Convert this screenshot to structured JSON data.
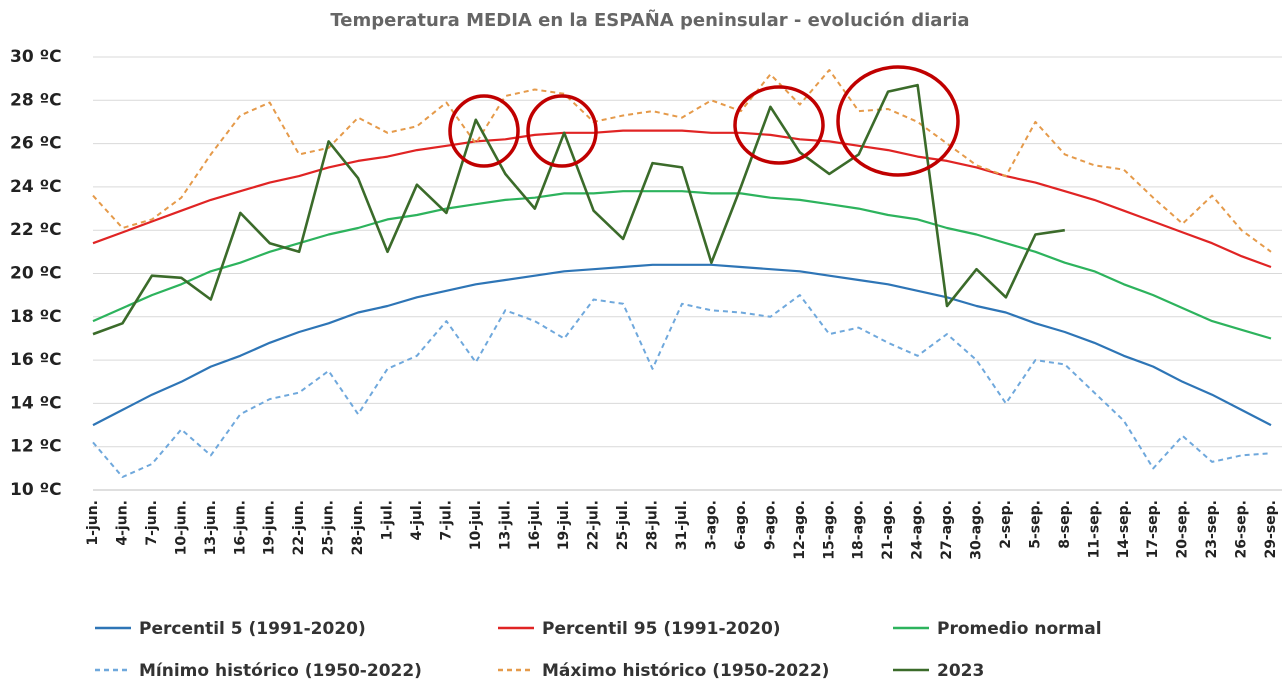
{
  "chart_data": {
    "type": "line",
    "title": "Temperatura MEDIA en la ESPAÑA peninsular - evolución diaria",
    "categories": [
      "1-jun.",
      "4-jun.",
      "7-jun.",
      "10-jun.",
      "13-jun.",
      "16-jun.",
      "19-jun.",
      "22-jun.",
      "25-jun.",
      "28-jun.",
      "1-jul.",
      "4-jul.",
      "7-jul.",
      "10-jul.",
      "13-jul.",
      "16-jul.",
      "19-jul.",
      "22-jul.",
      "25-jul.",
      "28-jul.",
      "31-jul.",
      "3-ago.",
      "6-ago.",
      "9-ago.",
      "12-ago.",
      "15-ago.",
      "18-ago.",
      "21-ago.",
      "24-ago.",
      "27-ago.",
      "30-ago.",
      "2-sep.",
      "5-sep.",
      "8-sep.",
      "11-sep.",
      "14-sep.",
      "17-sep.",
      "20-sep.",
      "23-sep.",
      "26-sep.",
      "29-sep."
    ],
    "ylim": [
      10,
      30
    ],
    "yticks": [
      {
        "value": 10,
        "label": "10 ºC"
      },
      {
        "value": 12,
        "label": "12 ºC"
      },
      {
        "value": 14,
        "label": "14 ºC"
      },
      {
        "value": 16,
        "label": "16 ºC"
      },
      {
        "value": 18,
        "label": "18 ºC"
      },
      {
        "value": 20,
        "label": "20 ºC"
      },
      {
        "value": 22,
        "label": "22 ºC"
      },
      {
        "value": 24,
        "label": "24 ºC"
      },
      {
        "value": 26,
        "label": "26 ºC"
      },
      {
        "value": 28,
        "label": "28 ºC"
      },
      {
        "value": 30,
        "label": "30 ºC"
      }
    ],
    "grid": true,
    "series": [
      {
        "name": "Percentil 5 (1991-2020)",
        "color": "#2e75b6",
        "dashed": false,
        "values": [
          13.0,
          13.7,
          14.4,
          15.0,
          15.7,
          16.2,
          16.8,
          17.3,
          17.7,
          18.2,
          18.5,
          18.9,
          19.2,
          19.5,
          19.7,
          19.9,
          20.1,
          20.2,
          20.3,
          20.4,
          20.4,
          20.4,
          20.3,
          20.2,
          20.1,
          19.9,
          19.7,
          19.5,
          19.2,
          18.9,
          18.5,
          18.2,
          17.7,
          17.3,
          16.8,
          16.2,
          15.7,
          15.0,
          14.4,
          13.7,
          13.0
        ]
      },
      {
        "name": "Percentil 95 (1991-2020)",
        "color": "#e02424",
        "dashed": false,
        "values": [
          21.4,
          21.9,
          22.4,
          22.9,
          23.4,
          23.8,
          24.2,
          24.5,
          24.9,
          25.2,
          25.4,
          25.7,
          25.9,
          26.1,
          26.2,
          26.4,
          26.5,
          26.5,
          26.6,
          26.6,
          26.6,
          26.5,
          26.5,
          26.4,
          26.2,
          26.1,
          25.9,
          25.7,
          25.4,
          25.2,
          24.9,
          24.5,
          24.2,
          23.8,
          23.4,
          22.9,
          22.4,
          21.9,
          21.4,
          20.8,
          20.3
        ]
      },
      {
        "name": "Promedio normal",
        "color": "#2db35d",
        "dashed": false,
        "values": [
          17.8,
          18.4,
          19.0,
          19.5,
          20.1,
          20.5,
          21.0,
          21.4,
          21.8,
          22.1,
          22.5,
          22.7,
          23.0,
          23.2,
          23.4,
          23.5,
          23.7,
          23.7,
          23.8,
          23.8,
          23.8,
          23.7,
          23.7,
          23.5,
          23.4,
          23.2,
          23.0,
          22.7,
          22.5,
          22.1,
          21.8,
          21.4,
          21.0,
          20.5,
          20.1,
          19.5,
          19.0,
          18.4,
          17.8,
          17.4,
          17.0
        ]
      },
      {
        "name": "Mínimo histórico (1950-2022)",
        "color": "#6fa8dc",
        "dashed": true,
        "values": [
          12.2,
          10.6,
          11.2,
          12.8,
          11.6,
          13.5,
          14.2,
          14.5,
          15.5,
          13.5,
          15.6,
          16.2,
          17.8,
          15.9,
          18.3,
          17.8,
          17.0,
          18.8,
          18.6,
          15.6,
          18.6,
          18.3,
          18.2,
          18.0,
          19.0,
          17.2,
          17.5,
          16.8,
          16.2,
          17.2,
          16.0,
          14.0,
          16.0,
          15.8,
          14.5,
          13.2,
          11.0,
          12.5,
          11.3,
          11.6,
          11.7
        ]
      },
      {
        "name": "Máximo histórico (1950-2022)",
        "color": "#e59a4a",
        "dashed": true,
        "values": [
          23.6,
          22.1,
          22.5,
          23.5,
          25.5,
          27.3,
          27.9,
          25.5,
          25.8,
          27.2,
          26.5,
          26.8,
          27.9,
          26.0,
          28.2,
          28.5,
          28.3,
          27.0,
          27.3,
          27.5,
          27.2,
          28.0,
          27.5,
          29.2,
          27.8,
          29.4,
          27.5,
          27.6,
          27.0,
          26.0,
          25.0,
          24.5,
          27.0,
          25.5,
          25.0,
          24.8,
          23.5,
          22.3,
          23.6,
          22.0,
          21.0
        ]
      },
      {
        "name": "2023",
        "color": "#3b6b2a",
        "dashed": false,
        "values": [
          17.2,
          17.7,
          19.9,
          19.8,
          18.8,
          22.8,
          21.4,
          21.0,
          26.1,
          24.4,
          21.0,
          24.1,
          22.8,
          27.1,
          24.6,
          23.0,
          26.5,
          22.9,
          21.6,
          25.1,
          24.9,
          20.5,
          24.0,
          27.7,
          25.6,
          24.6,
          25.5,
          28.4,
          28.7,
          18.5,
          20.2,
          18.9,
          21.8,
          22.0,
          null,
          null,
          null,
          null,
          null,
          null,
          null
        ]
      }
    ]
  }
}
